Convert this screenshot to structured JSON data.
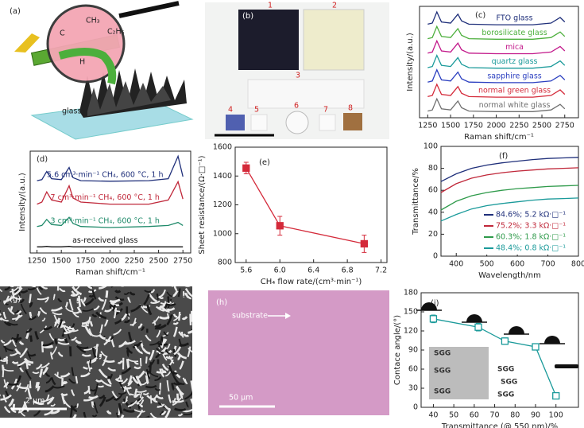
{
  "images": [
    {
      "label": "(a)",
      "texts": [
        "CH₃",
        "C",
        "C₂H₅",
        "H",
        "glass"
      ]
    },
    {
      "label": "(b)",
      "texts": [
        "1",
        "2",
        "3",
        "4",
        "5",
        "6",
        "7",
        "8"
      ]
    },
    {
      "label": "(g)",
      "texts": [
        "2 μm"
      ]
    },
    {
      "label": "(h)",
      "texts": [
        "substrate",
        "50 μm"
      ]
    }
  ],
  "chart_data": [
    {
      "type": "line",
      "label": "(c)",
      "x_label": "Raman shift/cm⁻¹",
      "y_label": "Intensity/(a.u.)",
      "legend": "inline",
      "xlim": [
        1160,
        2900
      ],
      "xticks": [
        1250,
        1500,
        1750,
        2000,
        2250,
        2500,
        2750
      ],
      "ylim": [
        0,
        100
      ],
      "x": [
        1250,
        1300,
        1350,
        1400,
        1500,
        1580,
        1620,
        1700,
        2000,
        2400,
        2600,
        2700,
        2750
      ],
      "series": [
        {
          "name": "FTO glass",
          "color": "#1f2f7a",
          "values": [
            84,
            85,
            95,
            86,
            85,
            93,
            87,
            84,
            83.5,
            83.5,
            85,
            90,
            86
          ]
        },
        {
          "name": "borosilicate glass",
          "color": "#4caf3c",
          "values": [
            71,
            72,
            82,
            73,
            72,
            80,
            74,
            71,
            70.5,
            70.5,
            72,
            77,
            73
          ]
        },
        {
          "name": "mica",
          "color": "#c2188a",
          "values": [
            58,
            59,
            69,
            60,
            59,
            67,
            61,
            58,
            57.5,
            57.5,
            59,
            64,
            60
          ]
        },
        {
          "name": "quartz glass",
          "color": "#1a9a9a",
          "values": [
            45,
            46,
            56,
            47,
            46,
            54,
            48,
            45,
            44.5,
            44.5,
            46,
            51,
            47
          ]
        },
        {
          "name": "sapphire glass",
          "color": "#2b3fc0",
          "values": [
            32,
            33,
            43,
            34,
            33,
            41,
            35,
            32,
            31.5,
            31.5,
            33,
            38,
            34
          ]
        },
        {
          "name": "normal green glass",
          "color": "#d42a3a",
          "values": [
            19,
            20,
            30,
            21,
            20,
            28,
            22,
            19,
            18.5,
            18.5,
            20,
            25,
            21
          ]
        },
        {
          "name": "normal white glass",
          "color": "#707070",
          "values": [
            6,
            7,
            17,
            8,
            7,
            15,
            9,
            6,
            5.5,
            5.5,
            7,
            12,
            8
          ]
        }
      ]
    },
    {
      "type": "line",
      "label": "(d)",
      "x_label": "Raman shift/cm⁻¹",
      "y_label": "Intensity/(a.u.)",
      "legend": "inline",
      "xlim": [
        1180,
        2830
      ],
      "xticks": [
        1250,
        1500,
        1750,
        2000,
        2250,
        2500,
        2750
      ],
      "ylim": [
        0,
        100
      ],
      "x": [
        1250,
        1300,
        1350,
        1400,
        1500,
        1580,
        1620,
        1700,
        2000,
        2400,
        2600,
        2700,
        2750
      ],
      "series": [
        {
          "name": "5.6 cm³·min⁻¹ CH₄, 600 °C, 1 h",
          "color": "#1f2f7a",
          "values": [
            71,
            72,
            80,
            73,
            72,
            84,
            74,
            71,
            70.5,
            71,
            73,
            95,
            75
          ]
        },
        {
          "name": "7 cm³·min⁻¹ CH₄, 600 °C, 1 h",
          "color": "#c0283a",
          "values": [
            48,
            50,
            60,
            52,
            50,
            66,
            54,
            50,
            48,
            48,
            52,
            70,
            53
          ]
        },
        {
          "name": "3 cm³·min⁻¹ CH₄, 600 °C, 1 h",
          "color": "#1f8a6a",
          "values": [
            26,
            27,
            33,
            28,
            27,
            35,
            29,
            26,
            25,
            26,
            27,
            30,
            27
          ]
        },
        {
          "name": "as-received glass",
          "color": "#111111",
          "values": [
            6,
            6,
            6.5,
            6,
            6,
            6.5,
            6,
            6,
            6,
            6,
            6,
            6,
            6
          ]
        }
      ]
    },
    {
      "type": "line",
      "label": "(e)",
      "x_label": "CH₄ flow rate/(cm³·min⁻¹)",
      "y_label": "Sheet resistance/(Ω·□⁻¹)",
      "marker": "square",
      "xlim": [
        5.47,
        7.27
      ],
      "xticks": [
        5.6,
        {
          "value": 6,
          "label": "6.0"
        },
        6.4,
        6.8,
        7.2
      ],
      "ylim": [
        800,
        1600
      ],
      "yticks": [
        800,
        1000,
        1200,
        1400,
        1600
      ],
      "x": [
        5.6,
        6.0,
        7.0
      ],
      "series": [
        {
          "color": "#d42a3a",
          "values": [
            1455,
            1055,
            930
          ],
          "errors": [
            40,
            65,
            60
          ]
        }
      ]
    },
    {
      "type": "line",
      "label": "(f)",
      "x_label": "Wavelength/nm",
      "y_label": "Transmittance/%",
      "legend": "lower right",
      "xlim": [
        350,
        800
      ],
      "xticks": [
        400,
        500,
        600,
        700,
        800
      ],
      "ylim": [
        0,
        100
      ],
      "yticks": [
        0,
        20,
        40,
        60,
        80,
        100
      ],
      "x": [
        350,
        400,
        450,
        500,
        550,
        600,
        650,
        700,
        750,
        800
      ],
      "series": [
        {
          "name": "84.6%; 5.2 kΩ·□⁻¹",
          "color": "#1f2f7a",
          "values": [
            68,
            75,
            80,
            83,
            85,
            86.5,
            88,
            89,
            89.5,
            90
          ]
        },
        {
          "name": "75.2%; 3.3 kΩ·□⁻¹",
          "color": "#c0283a",
          "values": [
            58,
            66,
            71,
            74,
            76,
            77.5,
            78.5,
            79.5,
            80,
            80.5
          ]
        },
        {
          "name": "60.3%; 1.8 kΩ·□⁻¹",
          "color": "#2e9a4a",
          "values": [
            42,
            50,
            55,
            58,
            60,
            61.5,
            62.5,
            63.5,
            64,
            64.5
          ]
        },
        {
          "name": "48.4%; 0.8 kΩ·□⁻¹",
          "color": "#1a9a9a",
          "values": [
            32,
            38,
            43,
            46,
            48,
            49.5,
            51,
            52,
            52.5,
            53
          ]
        }
      ]
    },
    {
      "type": "line",
      "label": "(i)",
      "x_label": "Transmittance (@ 550 nm)/%",
      "y_label": "Contace angle/(°)",
      "marker": "open-square",
      "xlim": [
        34,
        111
      ],
      "xticks": [
        40,
        50,
        60,
        70,
        80,
        90,
        100
      ],
      "ylim": [
        0,
        180
      ],
      "yticks": [
        0,
        30,
        60,
        90,
        120,
        150,
        180
      ],
      "x": [
        40,
        62,
        75,
        90,
        100
      ],
      "series": [
        {
          "color": "#1a9a9a",
          "values": [
            139,
            126,
            104,
            95,
            18
          ],
          "errors": [
            6,
            6,
            5,
            4,
            4
          ]
        }
      ],
      "annotations": [
        "SGG",
        "SGG",
        "SGG",
        "SGG",
        "SGG",
        "SGG"
      ]
    }
  ]
}
